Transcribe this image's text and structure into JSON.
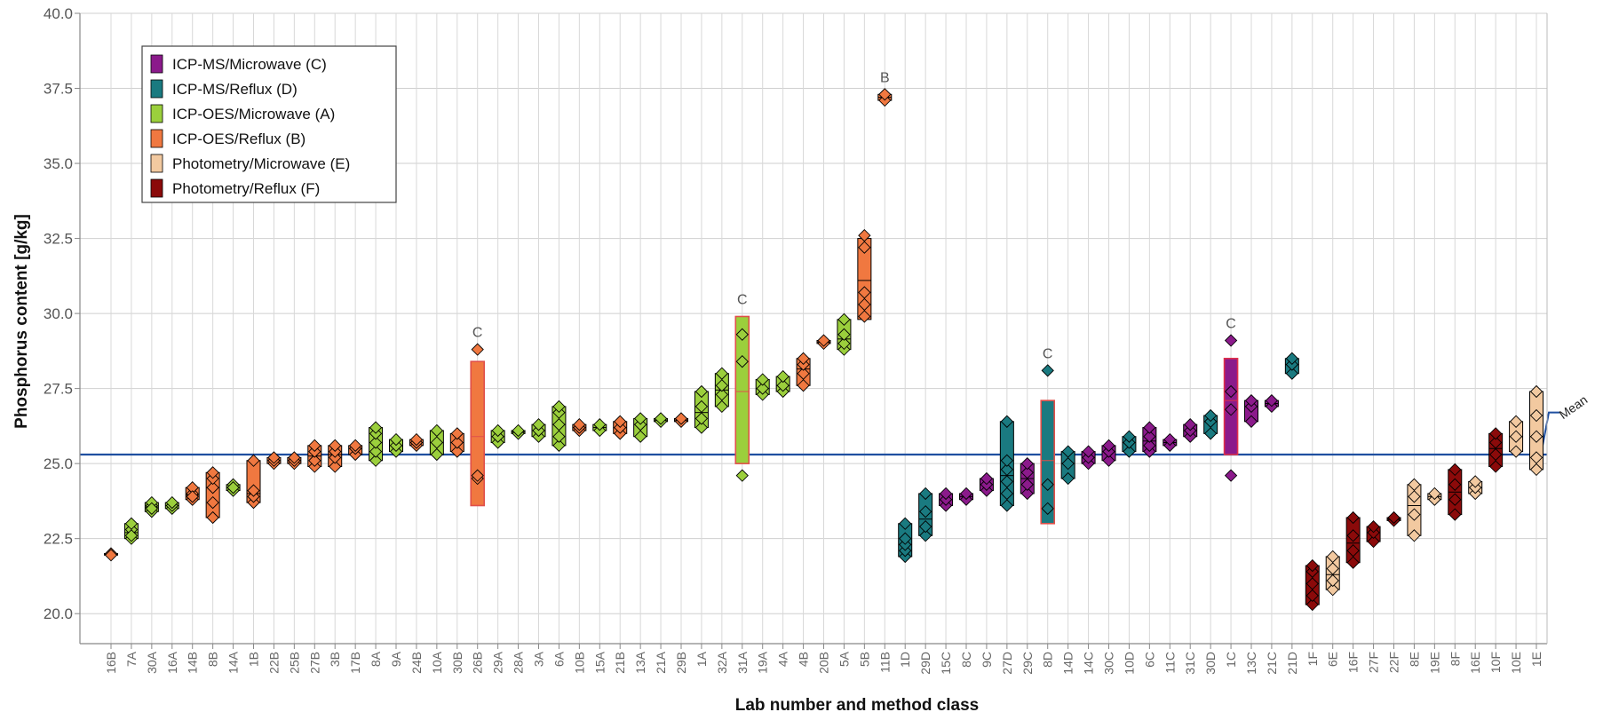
{
  "chart_data": {
    "type": "scatter",
    "xlabel": "Lab number and method class",
    "ylabel": "Phosphorus content [g/kg]",
    "ylim": [
      19.0,
      40.0
    ],
    "yticks": [
      "20.0",
      "22.5",
      "25.0",
      "27.5",
      "30.0",
      "32.5",
      "35.0",
      "37.5",
      "40.0"
    ],
    "ytick_values": [
      20.0,
      22.5,
      25.0,
      27.5,
      30.0,
      32.5,
      35.0,
      37.5,
      40.0
    ],
    "grid": true,
    "legend_position": "top-left",
    "mean": {
      "label": "Mean",
      "value": 25.3
    },
    "series": [
      {
        "name": "ICP-MS/Microwave (C)",
        "color": "#8B1A8B"
      },
      {
        "name": "ICP-MS/Reflux (D)",
        "color": "#1A7A80"
      },
      {
        "name": "ICP-OES/Microwave (A)",
        "color": "#9BCF3C"
      },
      {
        "name": "ICP-OES/Reflux (B)",
        "color": "#F07840"
      },
      {
        "name": "Photometry/Microwave (E)",
        "color": "#F2C9A0"
      },
      {
        "name": "Photometry/Reflux (F)",
        "color": "#8B0A0A"
      }
    ],
    "categories": [
      {
        "label": "16B",
        "cls": "B",
        "values": [
          22.0,
          21.95
        ]
      },
      {
        "label": "7A",
        "cls": "A",
        "values": [
          22.5,
          22.8,
          23.0,
          22.6
        ]
      },
      {
        "label": "30A",
        "cls": "A",
        "values": [
          23.4,
          23.6,
          23.7,
          23.5
        ]
      },
      {
        "label": "16A",
        "cls": "A",
        "values": [
          23.5,
          23.6,
          23.7
        ]
      },
      {
        "label": "14B",
        "cls": "B",
        "values": [
          23.8,
          24.0,
          24.2,
          23.9
        ]
      },
      {
        "label": "8B",
        "cls": "B",
        "values": [
          23.2,
          23.7,
          24.2,
          24.5,
          24.7
        ]
      },
      {
        "label": "14A",
        "cls": "A",
        "values": [
          24.1,
          24.3,
          24.2
        ]
      },
      {
        "label": "1B",
        "cls": "B",
        "values": [
          23.7,
          23.9,
          24.1,
          25.1
        ]
      },
      {
        "label": "22B",
        "cls": "B",
        "values": [
          25.0,
          25.1,
          25.2
        ]
      },
      {
        "label": "25B",
        "cls": "B",
        "values": [
          25.0,
          25.1,
          25.2
        ]
      },
      {
        "label": "27B",
        "cls": "B",
        "values": [
          24.9,
          25.1,
          25.4,
          25.6
        ]
      },
      {
        "label": "3B",
        "cls": "B",
        "values": [
          24.9,
          25.2,
          25.4,
          25.6
        ]
      },
      {
        "label": "17B",
        "cls": "B",
        "values": [
          25.3,
          25.5,
          25.6
        ]
      },
      {
        "label": "8A",
        "cls": "A",
        "values": [
          25.1,
          25.4,
          25.7,
          26.0,
          26.2
        ]
      },
      {
        "label": "9A",
        "cls": "A",
        "values": [
          25.4,
          25.6,
          25.8
        ]
      },
      {
        "label": "24B",
        "cls": "B",
        "values": [
          25.6,
          25.7,
          25.8
        ]
      },
      {
        "label": "10A",
        "cls": "A",
        "values": [
          25.3,
          25.7,
          26.1
        ]
      },
      {
        "label": "30B",
        "cls": "B",
        "values": [
          25.4,
          25.7,
          26.0
        ]
      },
      {
        "label": "26B",
        "cls": "B",
        "values": [
          24.5,
          24.6,
          28.8
        ],
        "box": [
          23.6,
          25.9,
          28.4
        ],
        "boxOutline": "#E0504A",
        "annotation": "C"
      },
      {
        "label": "29A",
        "cls": "A",
        "values": [
          25.7,
          25.9,
          26.1
        ]
      },
      {
        "label": "28A",
        "cls": "A",
        "values": [
          26.0,
          26.1
        ]
      },
      {
        "label": "3A",
        "cls": "A",
        "values": [
          25.9,
          26.1,
          26.3
        ]
      },
      {
        "label": "6A",
        "cls": "A",
        "values": [
          25.6,
          25.9,
          26.3,
          26.7,
          26.9
        ]
      },
      {
        "label": "10B",
        "cls": "B",
        "values": [
          26.1,
          26.2,
          26.3
        ]
      },
      {
        "label": "15A",
        "cls": "A",
        "values": [
          26.1,
          26.3
        ]
      },
      {
        "label": "21B",
        "cls": "B",
        "values": [
          26.0,
          26.2,
          26.4
        ]
      },
      {
        "label": "13A",
        "cls": "A",
        "values": [
          25.9,
          26.3,
          26.5
        ]
      },
      {
        "label": "21A",
        "cls": "A",
        "values": [
          26.4,
          26.5
        ]
      },
      {
        "label": "29B",
        "cls": "B",
        "values": [
          26.4,
          26.5
        ]
      },
      {
        "label": "1A",
        "cls": "A",
        "values": [
          26.2,
          26.5,
          26.9,
          27.4
        ]
      },
      {
        "label": "32A",
        "cls": "A",
        "values": [
          26.9,
          27.3,
          27.6,
          28.0
        ]
      },
      {
        "label": "31A",
        "cls": "A",
        "values": [
          24.6,
          28.4,
          29.3
        ],
        "box": [
          25.0,
          27.4,
          29.9
        ],
        "boxOutline": "#E0504A",
        "annotation": "C"
      },
      {
        "label": "19A",
        "cls": "A",
        "values": [
          27.3,
          27.5,
          27.8
        ]
      },
      {
        "label": "4A",
        "cls": "A",
        "values": [
          27.4,
          27.6,
          27.9
        ]
      },
      {
        "label": "4B",
        "cls": "B",
        "values": [
          27.6,
          28.0,
          28.3,
          28.5
        ]
      },
      {
        "label": "20B",
        "cls": "B",
        "values": [
          29.0,
          29.1
        ]
      },
      {
        "label": "5A",
        "cls": "A",
        "values": [
          28.8,
          29.0,
          29.3,
          29.8
        ]
      },
      {
        "label": "5B",
        "cls": "B",
        "values": [
          29.9,
          30.3,
          30.7,
          32.2,
          32.6
        ],
        "box": [
          29.8,
          31.1,
          32.5
        ]
      },
      {
        "label": "11B",
        "cls": "B",
        "values": [
          37.1,
          37.3
        ],
        "annotation": "B"
      },
      {
        "label": "1D",
        "cls": "D",
        "values": [
          21.9,
          22.1,
          22.3,
          22.5,
          23.0
        ]
      },
      {
        "label": "29D",
        "cls": "D",
        "values": [
          22.6,
          22.9,
          23.4,
          24.0
        ]
      },
      {
        "label": "15C",
        "cls": "C",
        "values": [
          23.6,
          23.8,
          24.0
        ]
      },
      {
        "label": "8C",
        "cls": "C",
        "values": [
          23.8,
          24.0
        ]
      },
      {
        "label": "9C",
        "cls": "C",
        "values": [
          24.1,
          24.3,
          24.5
        ]
      },
      {
        "label": "27D",
        "cls": "D",
        "values": [
          23.6,
          24.0,
          24.4,
          24.8,
          25.1,
          26.4
        ]
      },
      {
        "label": "29C",
        "cls": "C",
        "values": [
          24.0,
          24.3,
          24.7,
          25.0
        ]
      },
      {
        "label": "8D",
        "cls": "D",
        "values": [
          23.5,
          24.3,
          28.1
        ],
        "box": [
          23.0,
          25.1,
          27.1
        ],
        "boxOutline": "#E0504A",
        "annotation": "C"
      },
      {
        "label": "14D",
        "cls": "D",
        "values": [
          24.5,
          25.0,
          25.4
        ]
      },
      {
        "label": "14C",
        "cls": "C",
        "values": [
          25.0,
          25.2,
          25.4
        ]
      },
      {
        "label": "30C",
        "cls": "C",
        "values": [
          25.1,
          25.4,
          25.6
        ]
      },
      {
        "label": "10D",
        "cls": "D",
        "values": [
          25.4,
          25.7,
          25.9
        ]
      },
      {
        "label": "6C",
        "cls": "C",
        "values": [
          25.4,
          25.6,
          25.9,
          26.2
        ]
      },
      {
        "label": "11C",
        "cls": "C",
        "values": [
          25.6,
          25.8
        ]
      },
      {
        "label": "31C",
        "cls": "C",
        "values": [
          25.9,
          26.1,
          26.3
        ]
      },
      {
        "label": "30D",
        "cls": "D",
        "values": [
          26.0,
          26.4,
          26.6
        ]
      },
      {
        "label": "1C",
        "cls": "C",
        "values": [
          24.6,
          26.8,
          27.4,
          29.1
        ],
        "box": [
          25.3,
          27.1,
          28.5
        ],
        "boxOutline": "#E0304A",
        "annotation": "C"
      },
      {
        "label": "13C",
        "cls": "C",
        "values": [
          26.4,
          26.9,
          27.1
        ]
      },
      {
        "label": "21C",
        "cls": "C",
        "values": [
          26.9,
          27.1
        ]
      },
      {
        "label": "21D",
        "cls": "D",
        "values": [
          28.0,
          28.3,
          28.5
        ]
      },
      {
        "label": "1F",
        "cls": "F",
        "values": [
          20.3,
          20.6,
          21.0,
          21.4,
          21.6
        ]
      },
      {
        "label": "6E",
        "cls": "E",
        "values": [
          20.8,
          21.1,
          21.5,
          21.9
        ]
      },
      {
        "label": "16F",
        "cls": "F",
        "values": [
          21.7,
          22.1,
          22.6,
          23.2
        ]
      },
      {
        "label": "27F",
        "cls": "F",
        "values": [
          22.4,
          22.7,
          22.9
        ]
      },
      {
        "label": "22F",
        "cls": "F",
        "values": [
          23.1,
          23.2
        ]
      },
      {
        "label": "8E",
        "cls": "E",
        "values": [
          22.6,
          23.3,
          23.9,
          24.3
        ]
      },
      {
        "label": "19E",
        "cls": "E",
        "values": [
          23.8,
          24.0
        ]
      },
      {
        "label": "8F",
        "cls": "F",
        "values": [
          23.3,
          23.8,
          24.3,
          24.8
        ]
      },
      {
        "label": "16E",
        "cls": "E",
        "values": [
          24.0,
          24.2,
          24.4
        ]
      },
      {
        "label": "10F",
        "cls": "F",
        "values": [
          24.9,
          25.3,
          25.7,
          26.0
        ]
      },
      {
        "label": "10E",
        "cls": "E",
        "values": [
          25.4,
          25.9,
          26.4
        ]
      },
      {
        "label": "1E",
        "cls": "E",
        "values": [
          24.8,
          25.2,
          25.9,
          26.6,
          27.4
        ]
      }
    ]
  }
}
